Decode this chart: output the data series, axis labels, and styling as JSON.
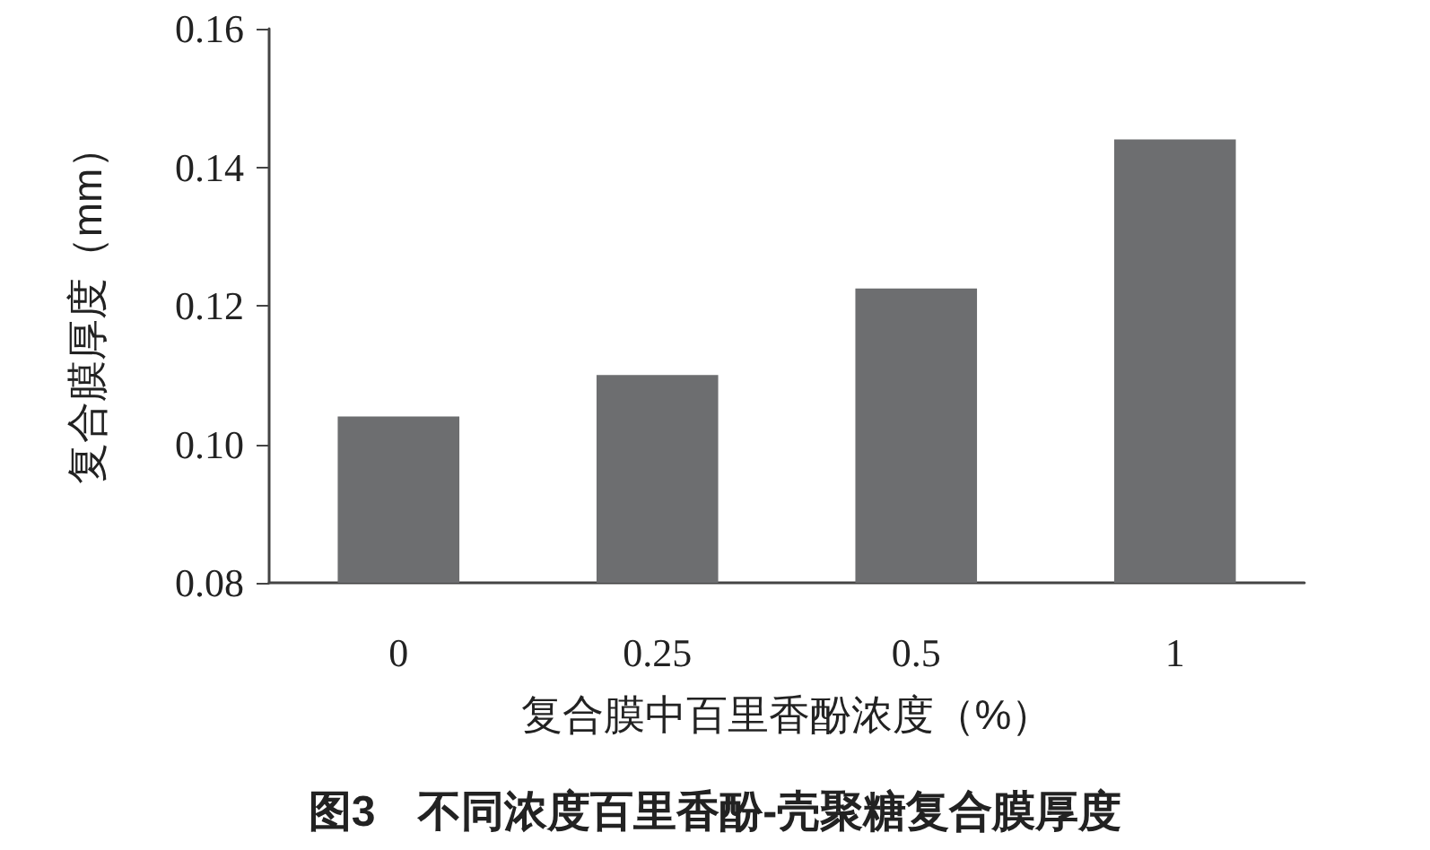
{
  "chart_data": {
    "type": "bar",
    "title": "图3　不同浓度百里香酚-壳聚糖复合膜厚度",
    "xlabel": "复合膜中百里香酚浓度（%）",
    "ylabel": "复合膜厚度（mm）",
    "categories": [
      "0",
      "0.25",
      "0.5",
      "1"
    ],
    "values": [
      0.104,
      0.11,
      0.1225,
      0.144
    ],
    "color": "#6d6e70",
    "ylim": [
      0.08,
      0.16
    ],
    "yticks": [
      {
        "value": 0.08,
        "label": "0.08"
      },
      {
        "value": 0.1,
        "label": "0.10"
      },
      {
        "value": 0.12,
        "label": "0.12"
      },
      {
        "value": 0.14,
        "label": "0.14"
      },
      {
        "value": 0.16,
        "label": "0.16"
      }
    ],
    "grid": false
  }
}
